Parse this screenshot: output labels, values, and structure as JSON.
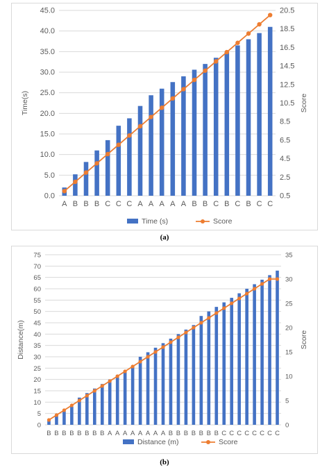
{
  "colors": {
    "bar": "#4472C4",
    "line": "#ED7D31",
    "grid": "#D9D9D9",
    "text": "#595959"
  },
  "chart_data": [
    {
      "type": "bar",
      "caption": "(a)",
      "categories": [
        "A",
        "B",
        "B",
        "B",
        "C",
        "C",
        "C",
        "A",
        "A",
        "A",
        "A",
        "A",
        "B",
        "B",
        "C",
        "B",
        "C",
        "B",
        "C",
        "C"
      ],
      "series": [
        {
          "name": "Time (s)",
          "kind": "bar",
          "axis": "left",
          "values": [
            2.0,
            5.2,
            8.2,
            11.0,
            13.5,
            17.0,
            18.8,
            21.8,
            24.4,
            26.0,
            27.6,
            29.0,
            30.6,
            32.0,
            33.5,
            35.0,
            36.5,
            38.0,
            39.5,
            41.0
          ]
        },
        {
          "name": "Score",
          "kind": "line",
          "axis": "right",
          "values": [
            1.0,
            2.0,
            3.0,
            4.0,
            5.0,
            6.0,
            7.0,
            8.0,
            9.0,
            10.0,
            11.0,
            12.0,
            13.0,
            14.0,
            15.0,
            16.0,
            17.0,
            18.0,
            19.0,
            20.0
          ]
        }
      ],
      "ylabel": "Time(s)",
      "y2label": "Score",
      "ylim": [
        0,
        45
      ],
      "yticks": [
        "0.0",
        "5.0",
        "10.0",
        "15.0",
        "20.0",
        "25.0",
        "30.0",
        "35.0",
        "40.0",
        "45.0"
      ],
      "y2lim": [
        0.5,
        20.5
      ],
      "y2ticks": [
        "0.5",
        "2.5",
        "4.5",
        "6.5",
        "8.5",
        "10.5",
        "12.5",
        "14.5",
        "16.5",
        "18.5",
        "20.5"
      ],
      "grid": true,
      "legend": "bottom"
    },
    {
      "type": "bar",
      "caption": "(b)",
      "categories": [
        "B",
        "B",
        "B",
        "B",
        "B",
        "B",
        "B",
        "B",
        "A",
        "A",
        "A",
        "A",
        "A",
        "A",
        "A",
        "A",
        "B",
        "B",
        "B",
        "B",
        "B",
        "B",
        "B",
        "C",
        "C",
        "C",
        "C",
        "C",
        "C",
        "C",
        "C"
      ],
      "series": [
        {
          "name": "Distance (m)",
          "kind": "bar",
          "axis": "left",
          "values": [
            2,
            4,
            6,
            8,
            12,
            14,
            16,
            18,
            20,
            22,
            24,
            26,
            30,
            32,
            34,
            36,
            38,
            40,
            42,
            44,
            48,
            50,
            52,
            54,
            56,
            58,
            60,
            62,
            64,
            66,
            68
          ]
        },
        {
          "name": "Score",
          "kind": "line",
          "axis": "right",
          "values": [
            1,
            2,
            3,
            4,
            5,
            6,
            7,
            8,
            9,
            10,
            11,
            12,
            13,
            14,
            15,
            16,
            17,
            18,
            19,
            20,
            21,
            22,
            23,
            24,
            25,
            26,
            27,
            28,
            29,
            30,
            30
          ]
        }
      ],
      "ylabel": "Distance(m)",
      "y2label": "Score",
      "ylim": [
        0,
        75
      ],
      "yticks": [
        "0",
        "5",
        "10",
        "15",
        "20",
        "25",
        "30",
        "35",
        "40",
        "45",
        "50",
        "55",
        "60",
        "65",
        "70",
        "75"
      ],
      "y2lim": [
        0,
        35
      ],
      "y2ticks": [
        "0",
        "5",
        "10",
        "15",
        "20",
        "25",
        "30",
        "35"
      ],
      "grid": true,
      "legend": "bottom"
    }
  ]
}
